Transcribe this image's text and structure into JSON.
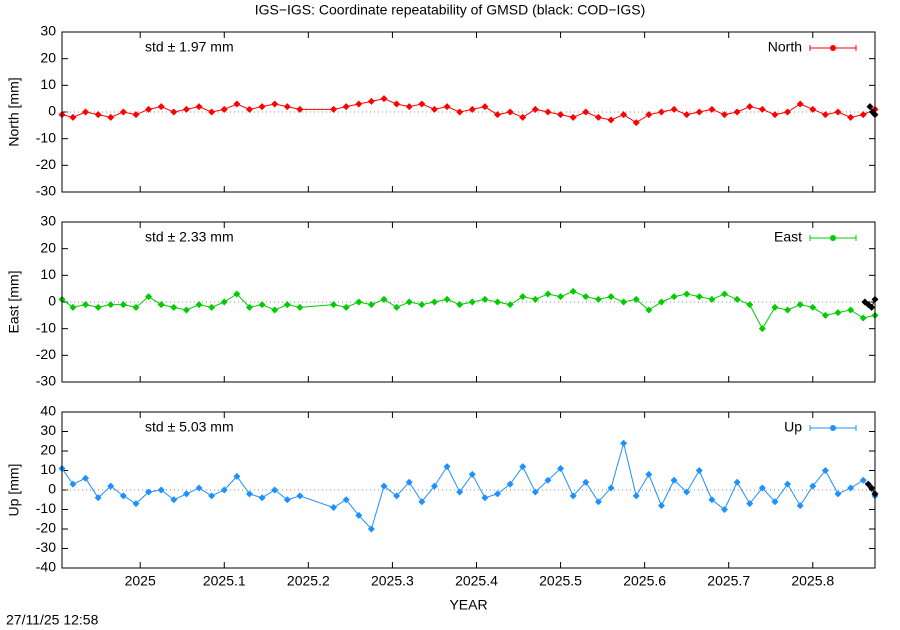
{
  "title": "IGS−IGS: Coordinate repeatability of GMSD (black: COD−IGS)",
  "timestamp": "27/11/25 12:58",
  "chart_data": [
    {
      "type": "line",
      "ylabel": "North [mm]",
      "annotation": "std ± 1.97 mm",
      "annotation_color": "#ff0000",
      "xlim": [
        2024.907,
        2025.874
      ],
      "xticks": [
        2025,
        2025.1,
        2025.2,
        2025.3,
        2025.4,
        2025.5,
        2025.6,
        2025.7,
        2025.8
      ],
      "ylim": [
        -30,
        30
      ],
      "yticks": [
        -30,
        -20,
        -10,
        0,
        10,
        20,
        30
      ],
      "zero_line": true,
      "legend": "top-right",
      "series": [
        {
          "name": "North",
          "color": "#ff0000",
          "x": [
            2024.907,
            2024.92,
            2024.935,
            2024.95,
            2024.965,
            2024.98,
            2024.995,
            2025.01,
            2025.025,
            2025.04,
            2025.055,
            2025.07,
            2025.085,
            2025.1,
            2025.115,
            2025.13,
            2025.145,
            2025.16,
            2025.175,
            2025.19,
            2025.23,
            2025.245,
            2025.26,
            2025.275,
            2025.29,
            2025.305,
            2025.32,
            2025.335,
            2025.35,
            2025.365,
            2025.38,
            2025.395,
            2025.41,
            2025.425,
            2025.44,
            2025.455,
            2025.47,
            2025.485,
            2025.5,
            2025.515,
            2025.53,
            2025.545,
            2025.56,
            2025.575,
            2025.59,
            2025.605,
            2025.62,
            2025.635,
            2025.65,
            2025.665,
            2025.68,
            2025.695,
            2025.71,
            2025.725,
            2025.74,
            2025.755,
            2025.77,
            2025.785,
            2025.8,
            2025.815,
            2025.83,
            2025.845,
            2025.86,
            2025.874
          ],
          "values": [
            -1,
            -2,
            0,
            -1,
            -2,
            0,
            -1,
            1,
            2,
            0,
            1,
            2,
            0,
            1,
            3,
            1,
            2,
            3,
            2,
            1,
            1,
            2,
            3,
            4,
            5,
            3,
            2,
            3,
            1,
            2,
            0,
            1,
            2,
            -1,
            0,
            -2,
            1,
            0,
            -1,
            -2,
            0,
            -2,
            -3,
            -1,
            -4,
            -1,
            0,
            1,
            -1,
            0,
            1,
            -1,
            0,
            2,
            1,
            -1,
            0,
            3,
            1,
            -1,
            0,
            -2,
            -1,
            1
          ]
        },
        {
          "color": "#000000",
          "x": [
            2025.868,
            2025.871,
            2025.874
          ],
          "values": [
            2,
            0,
            -1
          ]
        }
      ]
    },
    {
      "type": "line",
      "ylabel": "East [mm]",
      "annotation": "std ± 2.33 mm",
      "annotation_color": "#00bb00",
      "xlim": [
        2024.907,
        2025.874
      ],
      "xticks": [
        2025,
        2025.1,
        2025.2,
        2025.3,
        2025.4,
        2025.5,
        2025.6,
        2025.7,
        2025.8
      ],
      "ylim": [
        -30,
        30
      ],
      "yticks": [
        -30,
        -20,
        -10,
        0,
        10,
        20,
        30
      ],
      "zero_line": true,
      "legend": "top-right",
      "series": [
        {
          "name": "East",
          "color": "#00cc00",
          "x": [
            2024.907,
            2024.92,
            2024.935,
            2024.95,
            2024.965,
            2024.98,
            2024.995,
            2025.01,
            2025.025,
            2025.04,
            2025.055,
            2025.07,
            2025.085,
            2025.1,
            2025.115,
            2025.13,
            2025.145,
            2025.16,
            2025.175,
            2025.19,
            2025.23,
            2025.245,
            2025.26,
            2025.275,
            2025.29,
            2025.305,
            2025.32,
            2025.335,
            2025.35,
            2025.365,
            2025.38,
            2025.395,
            2025.41,
            2025.425,
            2025.44,
            2025.455,
            2025.47,
            2025.485,
            2025.5,
            2025.515,
            2025.53,
            2025.545,
            2025.56,
            2025.575,
            2025.59,
            2025.605,
            2025.62,
            2025.635,
            2025.65,
            2025.665,
            2025.68,
            2025.695,
            2025.71,
            2025.725,
            2025.74,
            2025.755,
            2025.77,
            2025.785,
            2025.8,
            2025.815,
            2025.83,
            2025.845,
            2025.86,
            2025.874
          ],
          "values": [
            1,
            -2,
            -1,
            -2,
            -1,
            -1,
            -2,
            2,
            -1,
            -2,
            -3,
            -1,
            -2,
            0,
            3,
            -2,
            -1,
            -3,
            -1,
            -2,
            -1,
            -2,
            0,
            -1,
            1,
            -2,
            0,
            -1,
            0,
            1,
            -1,
            0,
            1,
            0,
            -1,
            2,
            1,
            3,
            2,
            4,
            2,
            1,
            2,
            0,
            1,
            -3,
            0,
            2,
            3,
            2,
            1,
            3,
            1,
            -1,
            -10,
            -2,
            -3,
            -1,
            -2,
            -5,
            -4,
            -3,
            -6,
            -5
          ]
        },
        {
          "color": "#000000",
          "x": [
            2025.862,
            2025.866,
            2025.87,
            2025.874
          ],
          "values": [
            0,
            -1,
            -2,
            1
          ]
        }
      ]
    },
    {
      "type": "line",
      "ylabel": "Up [mm]",
      "xlabel": "YEAR",
      "annotation": "std ± 5.03 mm",
      "annotation_color": "#1e90ff",
      "xlim": [
        2024.907,
        2025.874
      ],
      "xticks": [
        2025,
        2025.1,
        2025.2,
        2025.3,
        2025.4,
        2025.5,
        2025.6,
        2025.7,
        2025.8
      ],
      "ylim": [
        -40,
        40
      ],
      "yticks": [
        -40,
        -30,
        -20,
        -10,
        0,
        10,
        20,
        30,
        40
      ],
      "zero_line": true,
      "legend": "top-right",
      "series": [
        {
          "name": "Up",
          "color": "#1e90ff",
          "x": [
            2024.907,
            2024.92,
            2024.935,
            2024.95,
            2024.965,
            2024.98,
            2024.995,
            2025.01,
            2025.025,
            2025.04,
            2025.055,
            2025.07,
            2025.085,
            2025.1,
            2025.115,
            2025.13,
            2025.145,
            2025.16,
            2025.175,
            2025.19,
            2025.23,
            2025.245,
            2025.26,
            2025.275,
            2025.29,
            2025.305,
            2025.32,
            2025.335,
            2025.35,
            2025.365,
            2025.38,
            2025.395,
            2025.41,
            2025.425,
            2025.44,
            2025.455,
            2025.47,
            2025.485,
            2025.5,
            2025.515,
            2025.53,
            2025.545,
            2025.56,
            2025.575,
            2025.59,
            2025.605,
            2025.62,
            2025.635,
            2025.65,
            2025.665,
            2025.68,
            2025.695,
            2025.71,
            2025.725,
            2025.74,
            2025.755,
            2025.77,
            2025.785,
            2025.8,
            2025.815,
            2025.83,
            2025.845,
            2025.86,
            2025.874
          ],
          "values": [
            11,
            3,
            6,
            -4,
            2,
            -3,
            -7,
            -1,
            0,
            -5,
            -2,
            1,
            -3,
            0,
            7,
            -2,
            -4,
            0,
            -5,
            -3,
            -9,
            -5,
            -13,
            -20,
            2,
            -3,
            4,
            -6,
            2,
            12,
            -1,
            8,
            -4,
            -2,
            3,
            12,
            -1,
            5,
            11,
            -3,
            4,
            -6,
            1,
            24,
            -3,
            8,
            -8,
            5,
            -1,
            10,
            -5,
            -10,
            4,
            -7,
            1,
            -6,
            3,
            -8,
            2,
            10,
            -2,
            1,
            5,
            -3
          ]
        },
        {
          "color": "#000000",
          "x": [
            2025.866,
            2025.87,
            2025.874
          ],
          "values": [
            3,
            1,
            -2
          ]
        }
      ]
    }
  ]
}
